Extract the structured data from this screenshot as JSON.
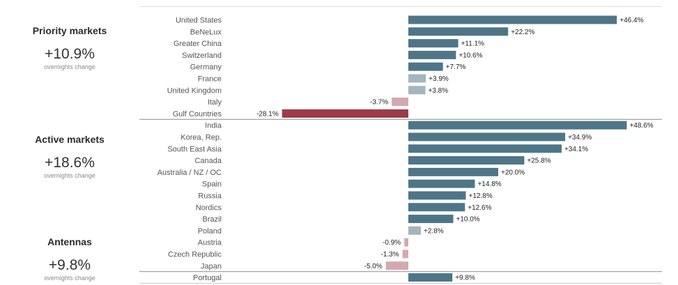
{
  "panels": [
    {
      "title": "Priority markets",
      "value": "+10.9%",
      "subtitle": "overnights change"
    },
    {
      "title": "Active markets",
      "value": "+18.6%",
      "subtitle": "overnights change"
    },
    {
      "title": "Antennas",
      "value": "+9.8%",
      "subtitle": "overnights change"
    }
  ],
  "colors": {
    "positive_strong": "#4f7588",
    "positive_weak": "#a3b6c0",
    "negative_strong": "#9e3c48",
    "negative_weak": "#d3a9b0"
  },
  "chart_data": {
    "type": "bar",
    "orientation": "horizontal",
    "unit": "%",
    "xlim": [
      -30,
      50
    ],
    "grid": false,
    "groups": [
      {
        "name": "Priority markets",
        "categories": [
          "United States",
          "BeNeLux",
          "Greater China",
          "Switzerland",
          "Germany",
          "France",
          "United Kingdom",
          "Italy",
          "Gulf Countries"
        ],
        "values": [
          46.4,
          22.2,
          11.1,
          10.6,
          7.7,
          3.9,
          3.8,
          -3.7,
          -28.1
        ],
        "labels": [
          "+46.4%",
          "+22.2%",
          "+11.1%",
          "+10.6%",
          "+7.7%",
          "+3.9%",
          "+3.8%",
          "-3.7%",
          "-28.1%"
        ]
      },
      {
        "name": "Active markets",
        "categories": [
          "India",
          "Korea, Rep.",
          "South East Asia",
          "Canada",
          "Australia / NZ / OC",
          "Spain",
          "Russia",
          "Nordics",
          "Brazil",
          "Poland",
          "Austria",
          "Czech Republic",
          "Japan"
        ],
        "values": [
          48.6,
          34.9,
          34.1,
          25.8,
          20.0,
          14.8,
          12.8,
          12.6,
          10.0,
          2.8,
          -0.9,
          -1.3,
          -5.0
        ],
        "labels": [
          "+48.6%",
          "+34.9%",
          "+34.1%",
          "+25.8%",
          "+20.0%",
          "+14.8%",
          "+12.8%",
          "+12.6%",
          "+10.0%",
          "+2.8%",
          "-0.9%",
          "-1.3%",
          "-5.0%"
        ]
      },
      {
        "name": "Antennas",
        "categories": [
          "Portugal"
        ],
        "values": [
          9.8
        ],
        "labels": [
          "+9.8%"
        ]
      }
    ]
  }
}
